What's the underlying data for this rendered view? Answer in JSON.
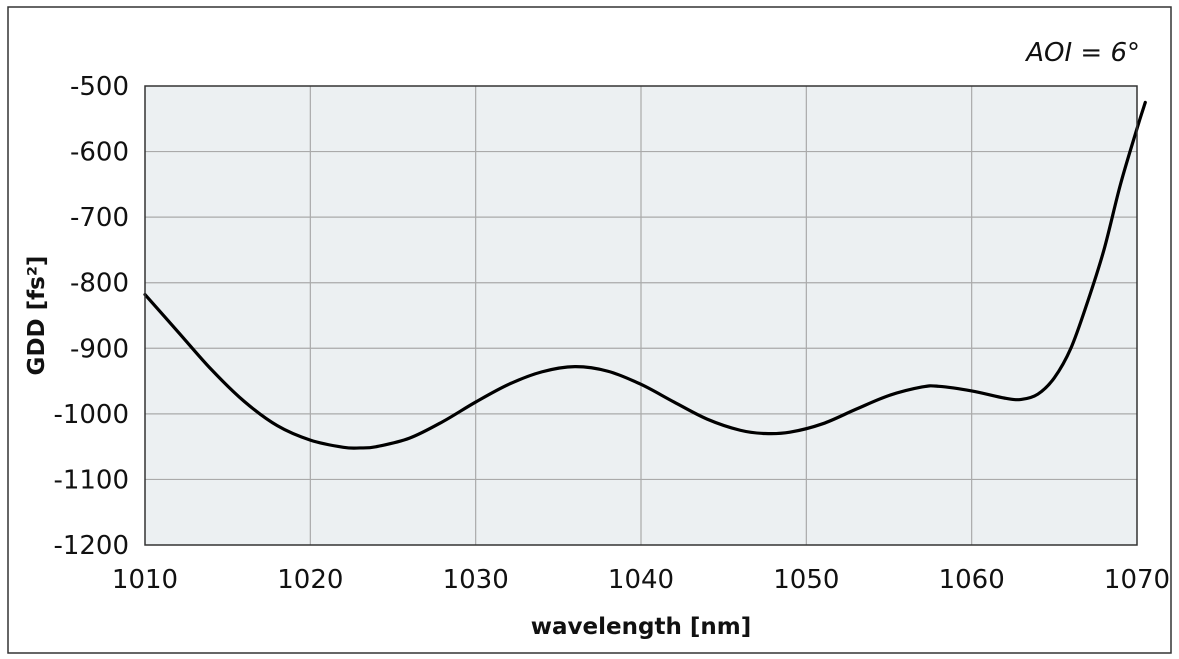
{
  "chart_data": {
    "type": "line",
    "title": "",
    "annotation": "AOI = 6°",
    "xlabel": "wavelength [nm]",
    "ylabel": "GDD [fs²]",
    "xlim": [
      1010,
      1070
    ],
    "ylim": [
      -1200,
      -500
    ],
    "x_ticks": [
      1010,
      1020,
      1030,
      1040,
      1050,
      1060,
      1070
    ],
    "y_ticks": [
      -500,
      -600,
      -700,
      -800,
      -900,
      -1000,
      -1100,
      -1200
    ],
    "x_tick_labels": [
      "1010",
      "1020",
      "1030",
      "1040",
      "1050",
      "1060",
      "1070"
    ],
    "y_tick_labels": [
      "-500",
      "-600",
      "-700",
      "-800",
      "-900",
      "-1000",
      "-1100",
      "-1200"
    ],
    "grid": true,
    "colors": {
      "plot_background": "#ecf0f2",
      "grid": "#aaaaaa",
      "line": "#000000",
      "frame": "#333333"
    },
    "series": [
      {
        "x": [
          1010,
          1012,
          1014,
          1016,
          1018,
          1020,
          1022,
          1023,
          1024,
          1026,
          1028,
          1030,
          1032,
          1034,
          1036,
          1038,
          1040,
          1042,
          1044,
          1046,
          1047.5,
          1049,
          1051,
          1053,
          1055,
          1057,
          1058,
          1060,
          1062,
          1063,
          1064,
          1065,
          1066,
          1067,
          1068,
          1069,
          1070,
          1070.5
        ],
        "y": [
          -818,
          -875,
          -932,
          -981,
          -1018,
          -1040,
          -1051,
          -1052,
          -1050,
          -1037,
          -1012,
          -982,
          -955,
          -936,
          -928,
          -935,
          -955,
          -982,
          -1008,
          -1025,
          -1030,
          -1028,
          -1015,
          -993,
          -972,
          -959,
          -958,
          -965,
          -976,
          -978,
          -970,
          -945,
          -900,
          -830,
          -750,
          -650,
          -565,
          -525
        ]
      }
    ]
  }
}
